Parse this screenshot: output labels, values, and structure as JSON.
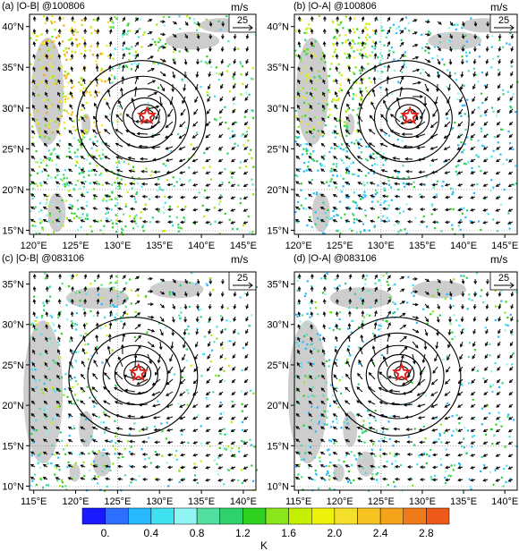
{
  "unit_label": "m/s",
  "ref_vector_label": "25",
  "colorbar": {
    "unit": "K",
    "tick_labels": [
      "0.",
      "0.4",
      "0.8",
      "1.2",
      "1.6",
      "2.0",
      "2.4",
      "2.8"
    ],
    "tick_values": [
      0.0,
      0.4,
      0.8,
      1.2,
      1.6,
      2.0,
      2.4,
      2.8
    ],
    "min": -0.2,
    "max": 3.0,
    "colors": [
      "#1a1aff",
      "#2f6fff",
      "#27b8ff",
      "#3fe0f0",
      "#8ff4f4",
      "#52e0a0",
      "#2dd36a",
      "#2ed11e",
      "#8ae51c",
      "#c4f000",
      "#eef20a",
      "#f4e02a",
      "#f5c221",
      "#f5a31a",
      "#f07a1a",
      "#ee5a18"
    ]
  },
  "chart_data": [
    {
      "type": "heatmap",
      "title": "(a) |O-B| @100806",
      "x_tick_labels": [
        "120°E",
        "125°E",
        "130°E",
        "135°E",
        "140°E",
        "145°E"
      ],
      "x_tick_values": [
        120,
        125,
        130,
        135,
        140,
        145
      ],
      "y_tick_labels": [
        "15°N",
        "20°N",
        "25°N",
        "30°N",
        "35°N",
        "40°N"
      ],
      "y_tick_values": [
        15,
        20,
        25,
        30,
        35,
        40
      ],
      "xlim": [
        119.5,
        146.5
      ],
      "ylim": [
        14.5,
        41.5
      ],
      "storm_center": [
        133.5,
        29.0
      ],
      "field": "|O-B|"
    },
    {
      "type": "heatmap",
      "title": "(b) |O-A| @100806",
      "x_tick_labels": [
        "120°E",
        "125°E",
        "130°E",
        "135°E",
        "140°E",
        "145°E"
      ],
      "x_tick_values": [
        120,
        125,
        130,
        135,
        140,
        145
      ],
      "y_tick_labels": [
        "15°N",
        "20°N",
        "25°N",
        "30°N",
        "35°N",
        "40°N"
      ],
      "y_tick_values": [
        15,
        20,
        25,
        30,
        35,
        40
      ],
      "xlim": [
        119.5,
        146.5
      ],
      "ylim": [
        14.5,
        41.5
      ],
      "storm_center": [
        133.5,
        29.0
      ],
      "field": "|O-A|"
    },
    {
      "type": "heatmap",
      "title": "(c) |O-B| @083106",
      "x_tick_labels": [
        "115°E",
        "120°E",
        "125°E",
        "130°E",
        "135°E",
        "140°E"
      ],
      "x_tick_values": [
        115,
        120,
        125,
        130,
        135,
        140
      ],
      "y_tick_labels": [
        "10°N",
        "15°N",
        "20°N",
        "25°N",
        "30°N",
        "35°N"
      ],
      "y_tick_values": [
        10,
        15,
        20,
        25,
        30,
        35
      ],
      "xlim": [
        114.5,
        141.5
      ],
      "ylim": [
        9.5,
        36.5
      ],
      "storm_center": [
        127.5,
        24.0
      ],
      "field": "|O-B|"
    },
    {
      "type": "heatmap",
      "title": "(d) |O-A| @083106",
      "x_tick_labels": [
        "115°E",
        "120°E",
        "125°E",
        "130°E",
        "135°E",
        "140°E"
      ],
      "x_tick_values": [
        115,
        120,
        125,
        130,
        135,
        140
      ],
      "y_tick_labels": [
        "10°N",
        "15°N",
        "20°N",
        "25°N",
        "30°N",
        "35°N"
      ],
      "y_tick_values": [
        10,
        15,
        20,
        25,
        30,
        35
      ],
      "xlim": [
        114.5,
        141.5
      ],
      "ylim": [
        9.5,
        36.5
      ],
      "storm_center": [
        127.5,
        24.0
      ],
      "field": "|O-A|"
    }
  ]
}
